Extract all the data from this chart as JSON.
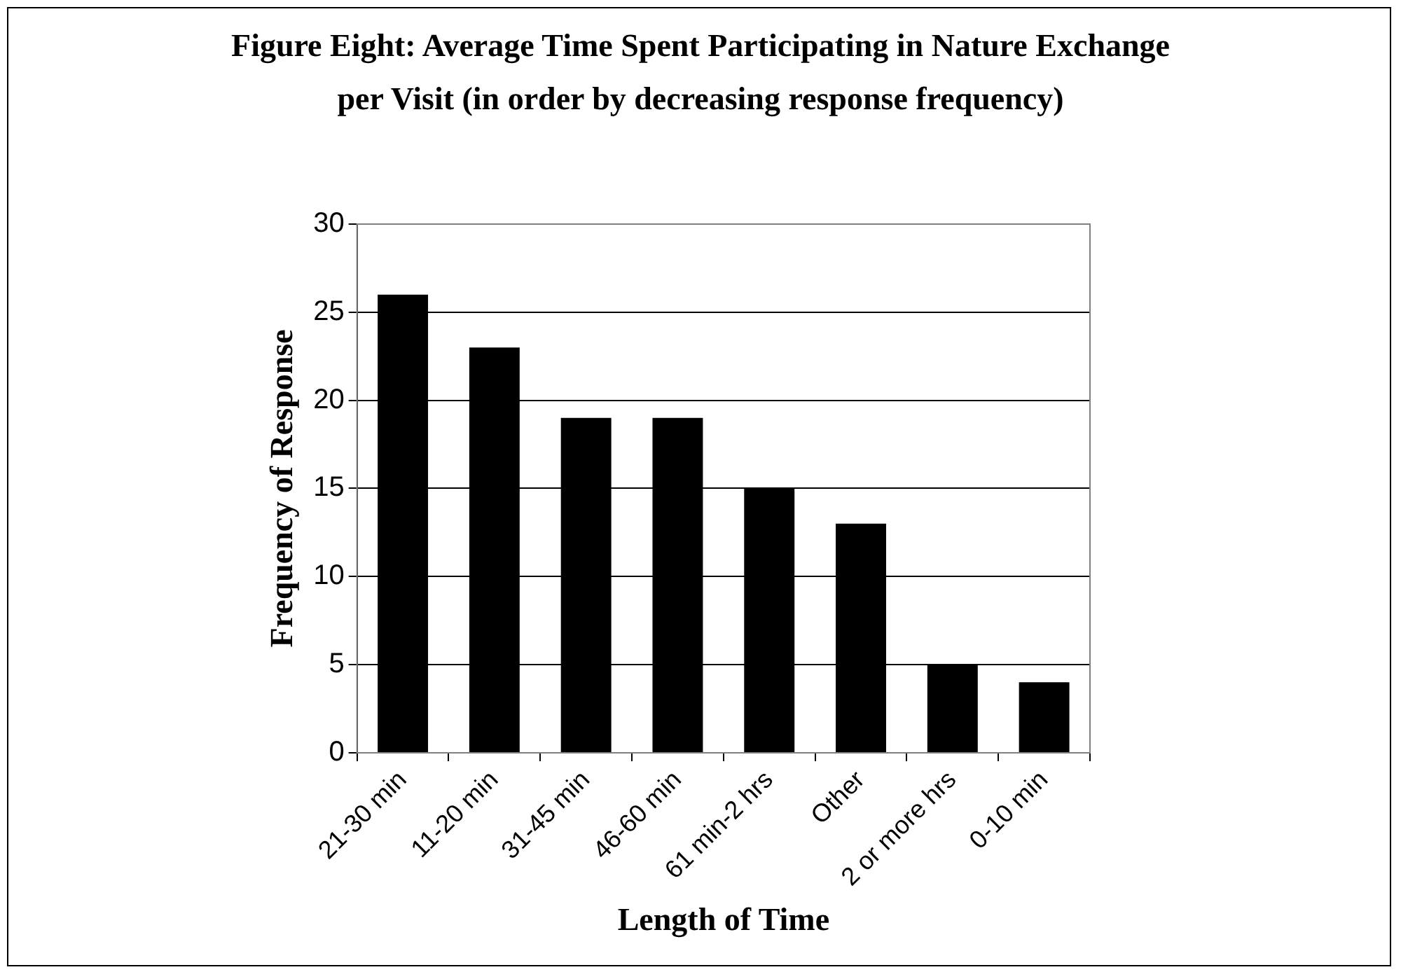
{
  "chart_data": {
    "type": "bar",
    "title": "Figure Eight:  Average Time Spent Participating in Nature Exchange per Visit (in order by decreasing response frequency)",
    "xlabel": "Length of Time",
    "ylabel": "Frequency of Response",
    "categories": [
      "21-30 min",
      "11-20 min",
      "31-45 min",
      "46-60 min",
      "61 min-2 hrs",
      "Other",
      "2 or more hrs",
      "0-10 min"
    ],
    "values": [
      26,
      23,
      19,
      19,
      15,
      13,
      5,
      4
    ],
    "color": "#000000",
    "ylim": [
      0,
      30
    ],
    "yticks": [
      0,
      5,
      10,
      15,
      20,
      25,
      30
    ],
    "grid": "y"
  }
}
